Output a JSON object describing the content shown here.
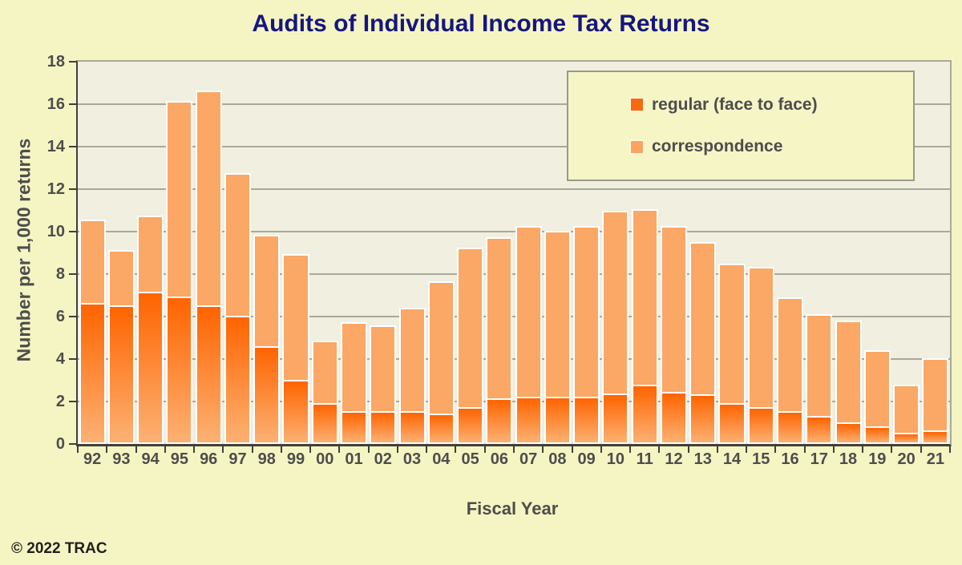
{
  "title": "Audits of Individual Income Tax Returns",
  "footer": {
    "copyright": "© 2022 TRAC"
  },
  "colors": {
    "background": "#f5f5c3",
    "plot_background": "#f0efe0",
    "gridline": "#a9a99b",
    "axis": "#40403a",
    "text": "#4d4d4d",
    "title_text": "#16167f",
    "regular_gradient_top": "#ff6400",
    "regular_gradient_bottom": "#fcb173",
    "correspondence": "#fba765",
    "bar_border": "#ffffff",
    "legend_swatch_regular": "#f8690f",
    "legend_swatch_correspondence": "#fba35f"
  },
  "chart_data": {
    "type": "bar",
    "stacked": true,
    "title": "Audits of Individual Income Tax Returns",
    "xlabel": "Fiscal Year",
    "ylabel": "Number per 1,000 returns",
    "ylim": [
      0,
      18
    ],
    "ytick_step": 2,
    "ytick_labels": [
      "0",
      "2",
      "4",
      "6",
      "8",
      "10",
      "12",
      "14",
      "16",
      "18"
    ],
    "grid": true,
    "legend_position": "top-right",
    "categories": [
      "92",
      "93",
      "94",
      "95",
      "96",
      "97",
      "98",
      "99",
      "00",
      "01",
      "02",
      "03",
      "04",
      "05",
      "06",
      "07",
      "08",
      "09",
      "10",
      "11",
      "12",
      "13",
      "14",
      "15",
      "16",
      "17",
      "18",
      "19",
      "20",
      "21"
    ],
    "series": [
      {
        "name": "regular (face to face)",
        "values": [
          6.6,
          6.5,
          7.15,
          6.9,
          6.5,
          6.0,
          4.55,
          3.0,
          1.9,
          1.5,
          1.5,
          1.5,
          1.4,
          1.7,
          2.1,
          2.2,
          2.2,
          2.2,
          2.35,
          2.75,
          2.4,
          2.3,
          1.9,
          1.7,
          1.5,
          1.3,
          1.0,
          0.8,
          0.5,
          0.6
        ]
      },
      {
        "name": "correspondence",
        "values": [
          3.95,
          2.65,
          3.6,
          9.25,
          10.15,
          6.75,
          5.3,
          5.95,
          2.95,
          4.25,
          4.1,
          4.9,
          6.25,
          7.55,
          7.65,
          8.05,
          7.85,
          8.05,
          8.65,
          8.3,
          7.85,
          7.2,
          6.6,
          6.65,
          5.4,
          4.8,
          4.8,
          3.6,
          2.3,
          3.45
        ]
      }
    ]
  }
}
